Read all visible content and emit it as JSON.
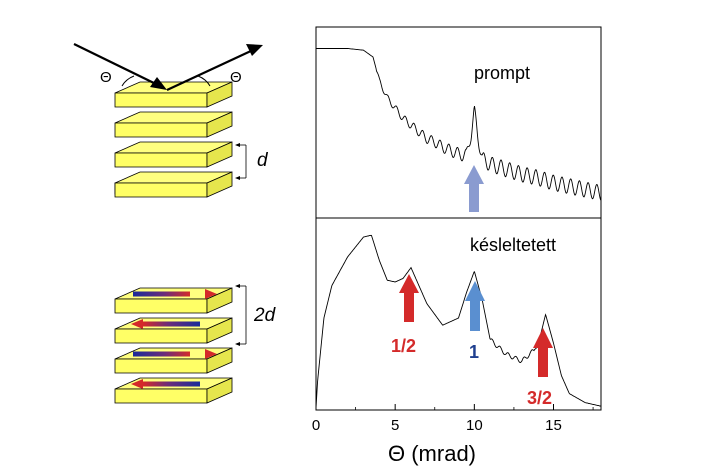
{
  "left": {
    "angle_symbol": "Θ",
    "spacing_small": "d",
    "spacing_large": "2d"
  },
  "panels": {
    "top_label": "prompt",
    "bottom_label": "késleltetett"
  },
  "peak_labels": {
    "half": "1/2",
    "one": "1",
    "three_half": "3/2"
  },
  "colors": {
    "red_arrow": "#d42a2a",
    "blue_arrow": "#5a8fd0",
    "grey_blue_arrow": "#8a9bd0",
    "label_red": "#d42a2a",
    "label_blue": "#1f3f8f"
  },
  "chart_data": {
    "type": "line",
    "xlabel": "Θ (mrad)",
    "xlim": [
      0,
      18
    ],
    "x_ticks": [
      "0",
      "5",
      "10",
      "15"
    ],
    "y_ticks_shown": false,
    "series": [
      {
        "name": "prompt",
        "x": [
          0,
          1,
          2,
          3,
          3.6,
          4,
          4.5,
          5,
          5.5,
          6,
          6.5,
          7,
          7.5,
          8,
          8.5,
          9,
          9.5,
          9.8,
          10,
          10.2,
          10.5,
          11,
          12,
          13,
          14,
          15,
          16,
          17,
          18
        ],
        "y": [
          0.95,
          0.95,
          0.95,
          0.94,
          0.9,
          0.76,
          0.66,
          0.6,
          0.54,
          0.5,
          0.46,
          0.42,
          0.4,
          0.37,
          0.35,
          0.33,
          0.32,
          0.45,
          0.58,
          0.45,
          0.3,
          0.27,
          0.24,
          0.21,
          0.19,
          0.16,
          0.14,
          0.12,
          0.1
        ]
      },
      {
        "name": "késleltetett",
        "x": [
          0,
          0.1,
          0.5,
          1,
          2,
          3,
          3.5,
          4,
          4.5,
          5,
          5.5,
          6,
          6.5,
          7,
          8,
          9,
          9.5,
          10,
          10.5,
          11,
          12,
          13,
          14,
          14.5,
          15,
          15.5,
          16,
          17,
          18
        ],
        "y": [
          0.0,
          0.15,
          0.5,
          0.68,
          0.84,
          0.95,
          0.96,
          0.82,
          0.71,
          0.7,
          0.72,
          0.78,
          0.68,
          0.58,
          0.46,
          0.5,
          0.64,
          0.76,
          0.6,
          0.38,
          0.3,
          0.26,
          0.34,
          0.52,
          0.36,
          0.18,
          0.08,
          0.03,
          0.01
        ]
      }
    ],
    "arrows": [
      {
        "panel": "prompt",
        "x": 10,
        "color": "grey-blue"
      },
      {
        "panel": "késleltetett",
        "x": 6,
        "color": "red",
        "label": "1/2"
      },
      {
        "panel": "késleltetett",
        "x": 10,
        "color": "blue",
        "label": "1"
      },
      {
        "panel": "késleltetett",
        "x": 14.5,
        "color": "red",
        "label": "3/2"
      }
    ]
  }
}
